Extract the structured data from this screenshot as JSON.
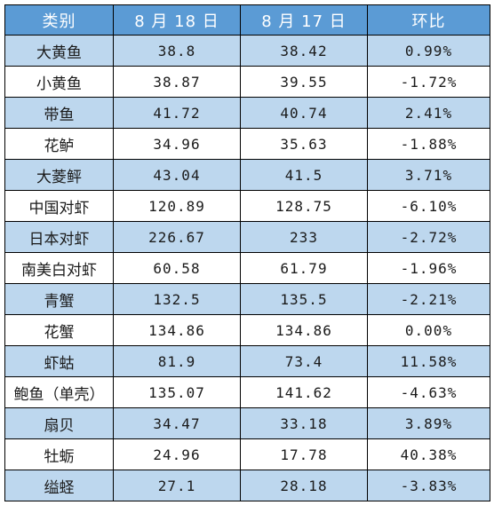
{
  "header": {
    "category": "类别",
    "date1": "8 月 18 日",
    "date2": "8 月 17 日",
    "change": "环比"
  },
  "rows": [
    {
      "name": "大黄鱼",
      "aug18": "38.8",
      "aug17": "38.42",
      "change": "0.99%"
    },
    {
      "name": "小黄鱼",
      "aug18": "38.87",
      "aug17": "39.55",
      "change": "-1.72%"
    },
    {
      "name": "带鱼",
      "aug18": "41.72",
      "aug17": "40.74",
      "change": "2.41%"
    },
    {
      "name": "花鲈",
      "aug18": "34.96",
      "aug17": "35.63",
      "change": "-1.88%"
    },
    {
      "name": "大菱鲆",
      "aug18": "43.04",
      "aug17": "41.5",
      "change": "3.71%"
    },
    {
      "name": "中国对虾",
      "aug18": "120.89",
      "aug17": "128.75",
      "change": "-6.10%"
    },
    {
      "name": "日本对虾",
      "aug18": "226.67",
      "aug17": "233",
      "change": "-2.72%"
    },
    {
      "name": "南美白对虾",
      "aug18": "60.58",
      "aug17": "61.79",
      "change": "-1.96%"
    },
    {
      "name": "青蟹",
      "aug18": "132.5",
      "aug17": "135.5",
      "change": "-2.21%"
    },
    {
      "name": "花蟹",
      "aug18": "134.86",
      "aug17": "134.86",
      "change": "0.00%"
    },
    {
      "name": "虾蛄",
      "aug18": "81.9",
      "aug17": "73.4",
      "change": "11.58%"
    },
    {
      "name": "鲍鱼（单壳）",
      "aug18": "135.07",
      "aug17": "141.62",
      "change": "-4.63%"
    },
    {
      "name": "扇贝",
      "aug18": "34.47",
      "aug17": "33.18",
      "change": "3.89%"
    },
    {
      "name": "牡蛎",
      "aug18": "24.96",
      "aug17": "17.78",
      "change": "40.38%"
    },
    {
      "name": "缢蛏",
      "aug18": "27.1",
      "aug17": "28.18",
      "change": "-3.83%"
    }
  ],
  "colors": {
    "header_bg": "#5b9bd5",
    "band_bg": "#bdd7ee",
    "plain_bg": "#ffffff",
    "border": "#000000"
  }
}
